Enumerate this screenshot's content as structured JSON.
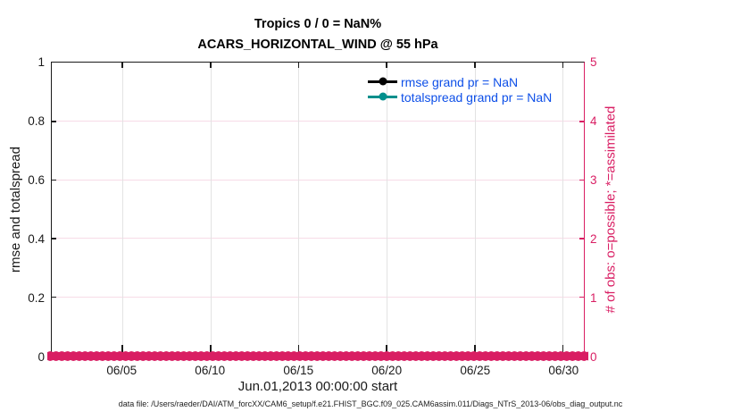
{
  "figure": {
    "footer": "data file: /Users/raeder/DAI/ATM_forcXX/CAM6_setup/f.e21.FHIST_BGC.f09_025.CAM6assim.011/Diags_NTrS_2013-06/obs_diag_output.nc"
  },
  "chart_data": {
    "type": "line",
    "title": "Tropics 0 / 0 = NaN%",
    "subtitle": "ACARS_HORIZONTAL_WIND @ 55 hPa",
    "xlabel": "Jun.01,2013 00:00:00 start",
    "ylabel_left": "rmse and totalspread",
    "ylabel_right": "# of obs: o=possible; *=assimilated",
    "grid": true,
    "left_axis": {
      "range": [
        0,
        1
      ],
      "ticks": [
        "1",
        "0.8",
        "0.6",
        "0.4",
        "0.2",
        "0"
      ],
      "color": "#1a1a1a"
    },
    "right_axis": {
      "range": [
        0,
        5
      ],
      "ticks": [
        "5",
        "4",
        "3",
        "2",
        "1",
        "0"
      ],
      "color": "#d91e63"
    },
    "x_axis": {
      "range_days": [
        0,
        30.2
      ],
      "ticks": [
        {
          "label": "06/05",
          "day": 4
        },
        {
          "label": "06/10",
          "day": 9
        },
        {
          "label": "06/15",
          "day": 14
        },
        {
          "label": "06/20",
          "day": 19
        },
        {
          "label": "06/25",
          "day": 24
        },
        {
          "label": "06/30",
          "day": 29
        }
      ]
    },
    "series": [
      {
        "name": "rmse grand pr = NaN",
        "color": "#000000",
        "marker": "filled-circle",
        "all_values_nan": true
      },
      {
        "name": "totalspread grand pr = NaN",
        "color": "#008f8c",
        "marker": "filled-circle",
        "all_values_nan": true
      }
    ],
    "obs_band": {
      "label": "# of obs possible and assimilated",
      "color": "#d91e63",
      "y_value": 0,
      "x_start_day": 0,
      "x_end_day": 30.2,
      "marker_count": 92,
      "markers": [
        "o",
        "*"
      ]
    },
    "legend": {
      "position": "top-right-inside",
      "text_color": "#0d4fe8"
    }
  }
}
